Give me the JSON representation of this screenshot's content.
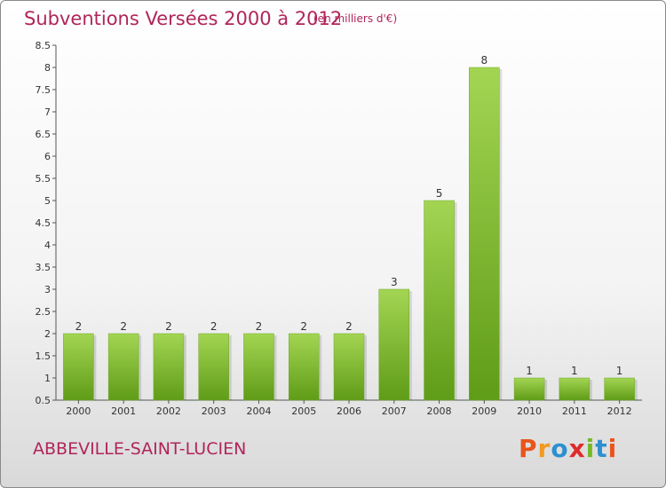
{
  "header": {
    "title": "Subventions Versées 2000 à 2012",
    "unit": "(en milliers d'€)"
  },
  "footer": {
    "location": "ABBEVILLE-SAINT-LUCIEN",
    "logo_letters": [
      "P",
      "r",
      "o",
      "x",
      "i",
      "t",
      "i"
    ]
  },
  "colors": {
    "title": "#b0255b",
    "bar_light": "#a3d553",
    "bar_dark": "#5f9c17",
    "logo": [
      "#e8541c",
      "#f29a1f",
      "#2e8fd0",
      "#e02a2a",
      "#76b82a",
      "#2e8fd0",
      "#e8541c"
    ]
  },
  "chart_data": {
    "type": "bar",
    "title": "Subventions Versées 2000 à 2012",
    "subtitle": "(en milliers d'€)",
    "xlabel": "",
    "ylabel": "",
    "categories": [
      "2000",
      "2001",
      "2002",
      "2003",
      "2004",
      "2005",
      "2006",
      "2007",
      "2008",
      "2009",
      "2010",
      "2011",
      "2012"
    ],
    "values": [
      2,
      2,
      2,
      2,
      2,
      2,
      2,
      3,
      5,
      8,
      1,
      1,
      1
    ],
    "ylim": [
      0.5,
      8.5
    ],
    "yticks": [
      "0.5",
      "1",
      "1.5",
      "2",
      "2.5",
      "3",
      "3.5",
      "4",
      "4.5",
      "5",
      "5.5",
      "6",
      "6.5",
      "7",
      "7.5",
      "8",
      "8.5"
    ],
    "grid": false,
    "legend": "none",
    "data_labels": true
  }
}
